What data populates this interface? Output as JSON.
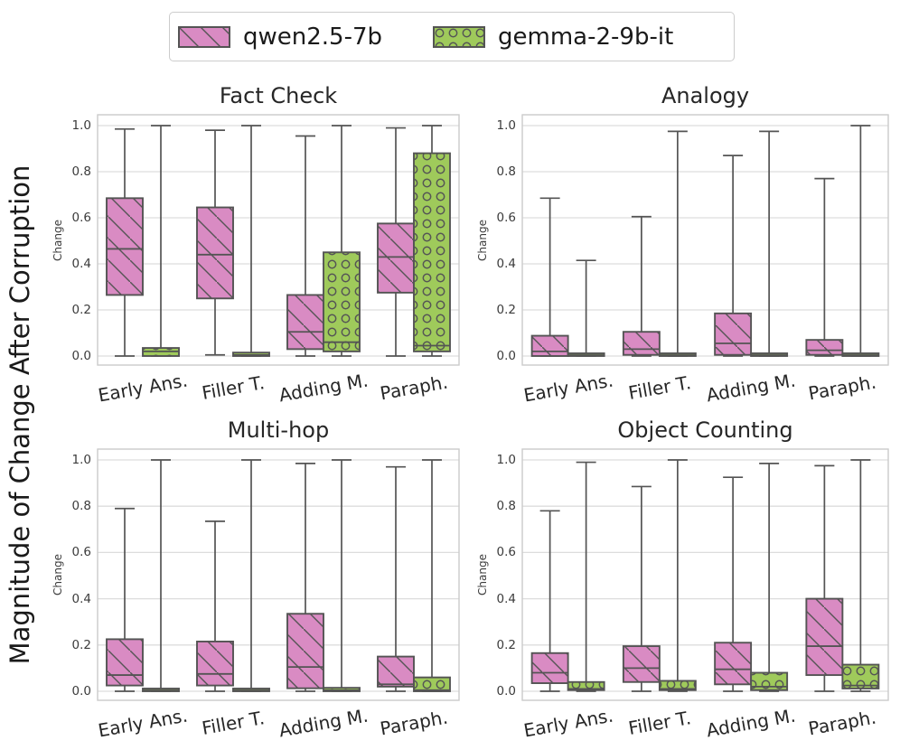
{
  "legend": {
    "items": [
      {
        "label": "qwen2.5-7b",
        "color": "#D98BC3",
        "hatch": "diagonal"
      },
      {
        "label": "gemma-2-9b-it",
        "color": "#9FCA5B",
        "hatch": "dots"
      }
    ]
  },
  "figure": {
    "ylabel": "Magnitude of Change After Corruption"
  },
  "style": {
    "box_edge": "#545454",
    "hatch_color": "#555555",
    "grid_color": "#dddddd",
    "spine_color": "#cbcbcb",
    "text_color": "#262626"
  },
  "chart_data": {
    "type": "boxplot",
    "layout": "2x2 grid of axes, shared style",
    "categories": [
      "Early Ans.",
      "Filler T.",
      "Adding M.",
      "Paraph."
    ],
    "series_names": [
      "qwen2.5-7b",
      "gemma-2-9b-it"
    ],
    "per_axes_ylabel": "Change",
    "yticks": [
      "0.0",
      "0.2",
      "0.4",
      "0.6",
      "0.8",
      "1.0"
    ],
    "ylim": [
      0.0,
      1.0
    ],
    "grid": "horizontal gridlines on",
    "box_format": [
      "whisker_low",
      "q1",
      "median",
      "q3",
      "whisker_high"
    ],
    "subplots": [
      {
        "title": "Fact Check",
        "boxes": [
          [
            [
              0.0,
              0.265,
              0.465,
              0.685,
              0.985
            ],
            [
              0.005,
              0.25,
              0.44,
              0.645,
              0.98
            ],
            [
              0.0,
              0.03,
              0.105,
              0.265,
              0.955
            ],
            [
              0.0,
              0.275,
              0.43,
              0.575,
              0.99
            ]
          ],
          [
            [
              0.0,
              0.0,
              0.02,
              0.035,
              1.0
            ],
            [
              0.0,
              0.0,
              0.005,
              0.015,
              1.0
            ],
            [
              0.0,
              0.02,
              0.06,
              0.45,
              1.0
            ],
            [
              0.0,
              0.02,
              0.045,
              0.88,
              1.0
            ]
          ]
        ]
      },
      {
        "title": "Analogy",
        "boxes": [
          [
            [
              0.0,
              0.0,
              0.02,
              0.088,
              0.685
            ],
            [
              0.0,
              0.005,
              0.03,
              0.105,
              0.605
            ],
            [
              0.0,
              0.005,
              0.055,
              0.185,
              0.87
            ],
            [
              0.0,
              0.005,
              0.025,
              0.07,
              0.77
            ]
          ],
          [
            [
              0.0,
              0.0,
              0.0,
              0.002,
              0.415
            ],
            [
              0.0,
              0.0,
              0.0,
              0.002,
              0.975
            ],
            [
              0.0,
              0.0,
              0.0,
              0.002,
              0.975
            ],
            [
              0.0,
              0.0,
              0.0,
              0.002,
              1.0
            ]
          ]
        ]
      },
      {
        "title": "Multi-hop",
        "boxes": [
          [
            [
              0.0,
              0.025,
              0.07,
              0.225,
              0.79
            ],
            [
              0.0,
              0.025,
              0.075,
              0.215,
              0.735
            ],
            [
              0.0,
              0.013,
              0.105,
              0.335,
              0.985
            ],
            [
              0.0,
              0.02,
              0.03,
              0.15,
              0.97
            ]
          ],
          [
            [
              0.0,
              0.0,
              0.002,
              0.005,
              1.0
            ],
            [
              0.0,
              0.0,
              0.003,
              0.008,
              1.0
            ],
            [
              0.0,
              0.0,
              0.005,
              0.015,
              1.0
            ],
            [
              0.0,
              0.0,
              0.005,
              0.06,
              1.0
            ]
          ]
        ]
      },
      {
        "title": "Object Counting",
        "boxes": [
          [
            [
              0.0,
              0.035,
              0.08,
              0.165,
              0.78
            ],
            [
              0.0,
              0.04,
              0.1,
              0.195,
              0.885
            ],
            [
              0.0,
              0.03,
              0.095,
              0.21,
              0.925
            ],
            [
              0.0,
              0.07,
              0.195,
              0.4,
              0.975
            ]
          ],
          [
            [
              0.0,
              0.005,
              0.01,
              0.04,
              0.99
            ],
            [
              0.0,
              0.005,
              0.01,
              0.045,
              1.0
            ],
            [
              0.0,
              0.005,
              0.02,
              0.08,
              0.985
            ],
            [
              0.0,
              0.012,
              0.025,
              0.115,
              1.0
            ]
          ]
        ]
      }
    ]
  }
}
